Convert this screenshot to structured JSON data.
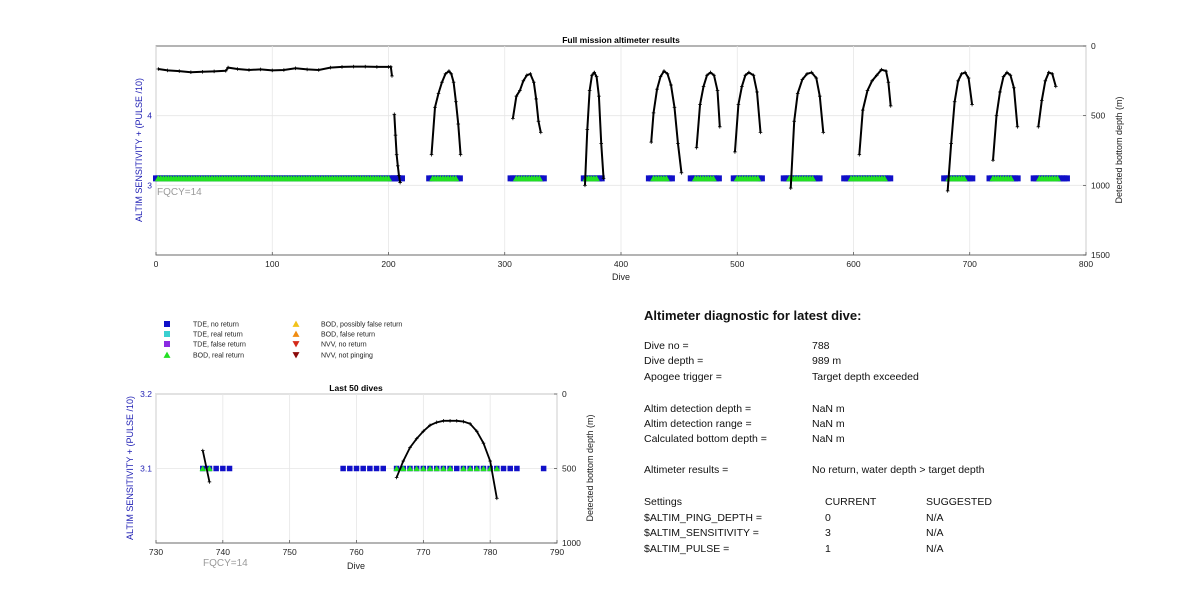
{
  "colors": {
    "tde_no_return": "#1010c8",
    "tde_real_return": "#3ad0d0",
    "tde_false_return": "#8a2be2",
    "bod_real_return": "#22e022",
    "bod_possibly_false": "#f2c21a",
    "bod_false_return": "#f08c10",
    "nvv_no_return": "#d42a1a",
    "nvv_not_pinging": "#8b0a0a",
    "bottom_depth_line": "#000000",
    "axis_blue": "#1f1fb4",
    "fqcy_gray": "#9a9a9a"
  },
  "legend": [
    {
      "label": "TDE, no return",
      "marker": "square",
      "color_key": "tde_no_return"
    },
    {
      "label": "TDE, real return",
      "marker": "square",
      "color_key": "tde_real_return"
    },
    {
      "label": "TDE, false return",
      "marker": "square",
      "color_key": "tde_false_return"
    },
    {
      "label": "BOD, real return",
      "marker": "triangle-up",
      "color_key": "bod_real_return"
    },
    {
      "label": "BOD, possibly false return",
      "marker": "triangle-up",
      "color_key": "bod_possibly_false"
    },
    {
      "label": "BOD, false return",
      "marker": "triangle-up",
      "color_key": "bod_false_return"
    },
    {
      "label": "NVV, no return",
      "marker": "triangle-down",
      "color_key": "nvv_no_return"
    },
    {
      "label": "NVV, not pinging",
      "marker": "triangle-down",
      "color_key": "nvv_not_pinging"
    }
  ],
  "chart_data": [
    {
      "type": "scatter",
      "title": "Full mission altimeter results",
      "xlabel": "Dive",
      "ylabel": "ALTIM SENSITIVITY + (PULSE /10)",
      "y2label": "Detected bottom depth (m)",
      "annotation": "FQCY=14",
      "xlim": [
        0,
        800
      ],
      "ylim": [
        2,
        5
      ],
      "y2lim": [
        1500,
        0
      ],
      "xticks": [
        "0",
        "100",
        "200",
        "300",
        "400",
        "500",
        "600",
        "700",
        "800"
      ],
      "yticks": [
        "3",
        "4"
      ],
      "y2ticks": [
        "0",
        "500",
        "1000",
        "1500"
      ],
      "grid": true,
      "series": [
        {
          "name": "TDE, no return",
          "marker": "square",
          "color_key": "tde_no_return",
          "y": 3.1,
          "segments": [
            [
              0,
              205
            ],
            [
              205,
              212
            ],
            [
              235,
              262
            ],
            [
              305,
              335
            ],
            [
              368,
              385
            ],
            [
              424,
              445
            ],
            [
              460,
              485
            ],
            [
              497,
              522
            ],
            [
              540,
              573
            ],
            [
              592,
              632
            ],
            [
              678,
              703
            ],
            [
              717,
              742
            ],
            [
              755,
              785
            ]
          ]
        },
        {
          "name": "BOD, real return",
          "marker": "triangle-up",
          "color_key": "bod_real_return",
          "y": 3.1,
          "segments": [
            [
              2,
              200
            ],
            [
              238,
              258
            ],
            [
              310,
              330
            ],
            [
              370,
              380
            ],
            [
              428,
              440
            ],
            [
              464,
              480
            ],
            [
              500,
              518
            ],
            [
              545,
              567
            ],
            [
              598,
              628
            ],
            [
              682,
              697
            ],
            [
              720,
              736
            ],
            [
              760,
              776
            ]
          ]
        }
      ],
      "bottom_depth_curves": [
        {
          "x": [
            2,
            10,
            20,
            30,
            40,
            50,
            60,
            62,
            70,
            80,
            90,
            100,
            110,
            120,
            130,
            140,
            150,
            160,
            170,
            180,
            190,
            200,
            202,
            203
          ],
          "y": [
            165,
            175,
            180,
            188,
            185,
            182,
            178,
            155,
            165,
            172,
            168,
            175,
            172,
            160,
            168,
            172,
            155,
            150,
            148,
            148,
            150,
            150,
            150,
            215
          ]
        },
        {
          "x": [
            205,
            206,
            207,
            208,
            209,
            210
          ],
          "y": [
            490,
            640,
            780,
            860,
            930,
            980
          ]
        },
        {
          "x": [
            237,
            240,
            243,
            246,
            249,
            252,
            254,
            256,
            258,
            260,
            262
          ],
          "y": [
            780,
            440,
            340,
            260,
            200,
            180,
            200,
            260,
            400,
            560,
            780
          ]
        },
        {
          "x": [
            307,
            310,
            313,
            316,
            319,
            322,
            325,
            327,
            329,
            331
          ],
          "y": [
            520,
            360,
            320,
            250,
            210,
            200,
            260,
            380,
            540,
            620
          ]
        },
        {
          "x": [
            369,
            371,
            373,
            375,
            377,
            379,
            381,
            383,
            385
          ],
          "y": [
            1000,
            600,
            320,
            210,
            190,
            220,
            360,
            700,
            950
          ]
        },
        {
          "x": [
            426,
            428,
            431,
            434,
            437,
            440,
            443,
            446,
            449,
            452
          ],
          "y": [
            690,
            480,
            310,
            220,
            180,
            200,
            280,
            440,
            700,
            910
          ]
        },
        {
          "x": [
            465,
            468,
            471,
            474,
            477,
            480,
            483,
            485
          ],
          "y": [
            730,
            420,
            290,
            210,
            190,
            210,
            320,
            580
          ]
        },
        {
          "x": [
            498,
            501,
            504,
            507,
            510,
            514,
            517,
            520
          ],
          "y": [
            760,
            420,
            290,
            210,
            190,
            210,
            330,
            620
          ]
        },
        {
          "x": [
            546,
            549,
            552,
            556,
            560,
            564,
            568,
            571,
            574
          ],
          "y": [
            1020,
            540,
            340,
            240,
            200,
            190,
            230,
            360,
            620
          ]
        },
        {
          "x": [
            605,
            608,
            612,
            616,
            620,
            624,
            628,
            630,
            632
          ],
          "y": [
            780,
            460,
            320,
            250,
            210,
            170,
            180,
            260,
            430
          ]
        },
        {
          "x": [
            681,
            684,
            687,
            690,
            693,
            696,
            699,
            702
          ],
          "y": [
            1040,
            700,
            400,
            250,
            200,
            190,
            230,
            420
          ]
        },
        {
          "x": [
            720,
            723,
            726,
            729,
            732,
            735,
            738,
            741
          ],
          "y": [
            820,
            500,
            330,
            220,
            190,
            210,
            300,
            580
          ]
        },
        {
          "x": [
            759,
            762,
            765,
            768,
            771,
            774
          ],
          "y": [
            580,
            390,
            250,
            190,
            200,
            290
          ]
        }
      ]
    },
    {
      "type": "scatter",
      "title": "Last 50 dives",
      "xlabel": "Dive",
      "ylabel": "ALTIM SENSITIVITY + (PULSE /10)",
      "y2label": "Detected bottom depth (m)",
      "annotation": "FQCY=14",
      "xlim": [
        730,
        790
      ],
      "ylim": [
        3.0,
        3.2
      ],
      "y2lim": [
        1000,
        0
      ],
      "xticks": [
        "730",
        "740",
        "750",
        "760",
        "770",
        "780",
        "790"
      ],
      "yticks": [
        "3.1",
        "3.2"
      ],
      "y2ticks": [
        "0",
        "500",
        "1000"
      ],
      "grid": true,
      "series": [
        {
          "name": "TDE, no return",
          "marker": "square",
          "color_key": "tde_no_return",
          "y": 3.1,
          "x": [
            737,
            738,
            739,
            740,
            741,
            758,
            759,
            760,
            761,
            762,
            763,
            764,
            766,
            767,
            768,
            769,
            770,
            771,
            772,
            773,
            774,
            775,
            776,
            777,
            778,
            779,
            780,
            781,
            782,
            783,
            784,
            788
          ]
        },
        {
          "name": "BOD, real return",
          "marker": "triangle-up",
          "color_key": "bod_real_return",
          "y": 3.1,
          "x": [
            737,
            738,
            766,
            767,
            768,
            769,
            770,
            771,
            772,
            773,
            774,
            776,
            777,
            778,
            779,
            780,
            781
          ]
        }
      ],
      "bottom_depth_curves": [
        {
          "x": [
            737,
            738
          ],
          "y": [
            380,
            590
          ]
        },
        {
          "x": [
            766,
            767,
            768,
            769,
            770,
            771,
            772,
            773,
            774,
            775,
            776,
            777,
            778,
            779,
            780,
            781
          ],
          "y": [
            560,
            450,
            360,
            300,
            250,
            210,
            190,
            180,
            180,
            180,
            185,
            200,
            250,
            330,
            450,
            700
          ]
        }
      ]
    }
  ],
  "diagnostic": {
    "title": "Altimeter diagnostic for latest dive:",
    "rows1": [
      {
        "label": "Dive no =",
        "value": "788"
      },
      {
        "label": "Dive depth =",
        "value": "989 m"
      },
      {
        "label": "Apogee trigger =",
        "value": "Target depth exceeded"
      }
    ],
    "rows2": [
      {
        "label": "Altim detection depth =",
        "value": "NaN m"
      },
      {
        "label": "Altim detection range =",
        "value": "NaN m"
      },
      {
        "label": "Calculated bottom depth =",
        "value": "NaN m"
      }
    ],
    "rows3": [
      {
        "label": "Altimeter results =",
        "value": "No return, water depth > target depth"
      }
    ],
    "settings_header": {
      "label": "Settings",
      "current": "CURRENT",
      "suggested": "SUGGESTED"
    },
    "settings": [
      {
        "label": "$ALTIM_PING_DEPTH =",
        "current": "0",
        "suggested": "N/A"
      },
      {
        "label": "$ALTIM_SENSITIVITY =",
        "current": "3",
        "suggested": "N/A"
      },
      {
        "label": "$ALTIM_PULSE =",
        "current": "1",
        "suggested": "N/A"
      }
    ]
  }
}
